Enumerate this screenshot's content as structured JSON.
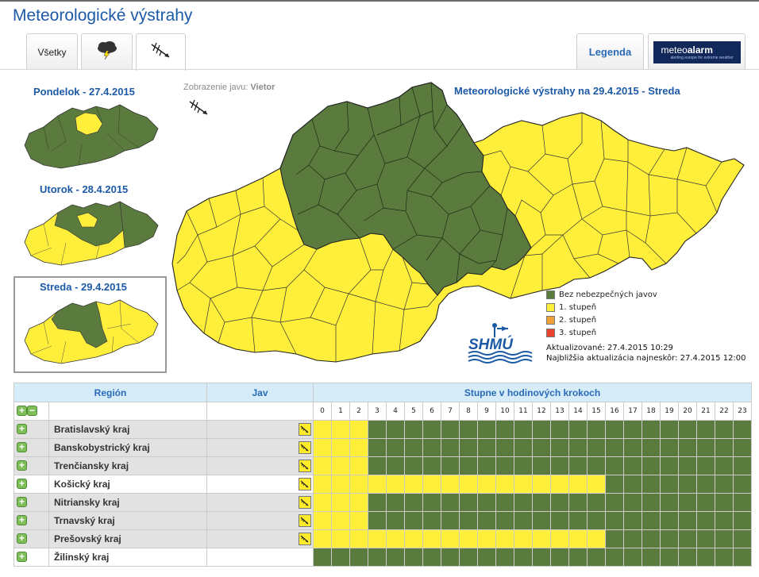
{
  "app": {
    "title": "Meteorologické výstrahy"
  },
  "tabs": [
    {
      "label": "Všetky",
      "active": false
    },
    {
      "label": "",
      "icon": "thunderstorm-icon",
      "active": false
    },
    {
      "label": "",
      "icon": "wind-icon",
      "active": true
    }
  ],
  "legend_tab": "Legenda",
  "meteoalarm": {
    "prefix": "meteo",
    "brand": "alarm",
    "tagline": "alerting europe for extreme weather"
  },
  "days": [
    {
      "label": "Pondelok - 27.4.2015"
    },
    {
      "label": "Utorok - 28.4.2015"
    },
    {
      "label": "Streda - 29.4.2015",
      "selected": true
    }
  ],
  "phenomenon": {
    "prefix": "Zobrazenie javu:",
    "value": "Vietor"
  },
  "map": {
    "title": "Meteorologické výstrahy na 29.4.2015 - Streda"
  },
  "legend": [
    {
      "label": "Bez nebezpečných javov",
      "color": "#5a7a3e"
    },
    {
      "label": "1. stupeň",
      "color": "#ffef3a"
    },
    {
      "label": "2. stupeň",
      "color": "#f0a035"
    },
    {
      "label": "3. stupeň",
      "color": "#e8432c"
    }
  ],
  "shmu_logo": "SHMÚ",
  "updated": "Aktualizované: 27.4.2015 10:29",
  "next_update": "Najbližšia aktualizácia najneskôr: 27.4.2015 12:00",
  "colors": {
    "green": "#5a7a3e",
    "yellow": "#ffef3a",
    "header_bg": "#d6ecf9",
    "accent": "#1c5aa6"
  },
  "table": {
    "col_region": "Región",
    "col_jav": "Jav",
    "col_steps": "Stupne v hodinových krokoch",
    "hours": [
      "0",
      "1",
      "2",
      "3",
      "4",
      "5",
      "6",
      "7",
      "8",
      "9",
      "10",
      "11",
      "12",
      "13",
      "14",
      "15",
      "16",
      "17",
      "18",
      "19",
      "20",
      "21",
      "22",
      "23"
    ],
    "rows": [
      {
        "name": "Bratislavský kraj",
        "wind": true,
        "yellow_hours": 3
      },
      {
        "name": "Banskobystrický kraj",
        "wind": true,
        "yellow_hours": 3
      },
      {
        "name": "Trenčiansky kraj",
        "wind": true,
        "yellow_hours": 3
      },
      {
        "name": "Košický kraj",
        "wind": true,
        "yellow_hours": 16
      },
      {
        "name": "Nitriansky kraj",
        "wind": true,
        "yellow_hours": 3
      },
      {
        "name": "Trnavský kraj",
        "wind": true,
        "yellow_hours": 3
      },
      {
        "name": "Prešovský kraj",
        "wind": true,
        "yellow_hours": 16
      },
      {
        "name": "Žilinský kraj",
        "wind": false,
        "yellow_hours": 0
      }
    ]
  }
}
